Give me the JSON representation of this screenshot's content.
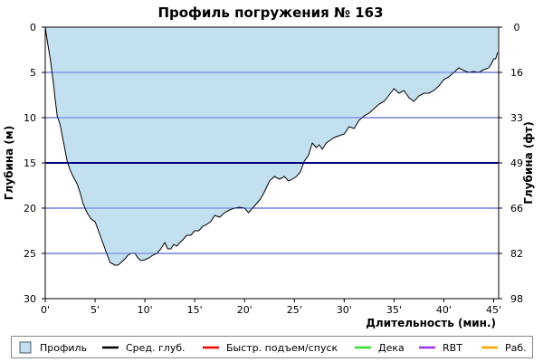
{
  "chart_data": {
    "type": "area",
    "title": "Профиль погружения № 163",
    "xlabel": "Длительность (мин.)",
    "ylabel_left": "Глубина (м)",
    "ylabel_right": "Глубина (фт)",
    "xlim": [
      0,
      45.5
    ],
    "ylim": [
      0,
      30
    ],
    "y_inverted": true,
    "x_ticks": [
      0,
      5,
      10,
      15,
      20,
      25,
      30,
      35,
      40,
      45
    ],
    "x_tick_labels": [
      "0'",
      "5'",
      "10'",
      "15'",
      "20'",
      "25'",
      "30'",
      "35'",
      "40'",
      "45'"
    ],
    "y_ticks_left": [
      0,
      5,
      10,
      15,
      20,
      25,
      30
    ],
    "y_tick_labels_left": [
      "0",
      "5",
      "10",
      "15",
      "20",
      "25",
      "30"
    ],
    "y_ticks_right_positions": [
      0,
      5,
      10,
      15,
      20,
      25,
      30
    ],
    "y_tick_labels_right": [
      "0",
      "16",
      "33",
      "49",
      "66",
      "82",
      "98"
    ],
    "grid": "horizontal",
    "average_depth": 15,
    "colors": {
      "profile_fill": "#c3e0f0",
      "profile_line": "#000000",
      "grid": "#2b3fc4",
      "avg_depth": "#000080",
      "axis": "#000000"
    },
    "series": [
      {
        "name": "Профиль",
        "x": [
          0,
          0.2,
          0.5,
          0.8,
          1.0,
          1.2,
          1.5,
          1.8,
          2.2,
          2.5,
          2.8,
          3.2,
          3.5,
          3.8,
          4.2,
          4.6,
          5.0,
          5.5,
          6.0,
          6.5,
          7.0,
          7.3,
          7.6,
          8.0,
          8.3,
          8.6,
          9.0,
          9.3,
          9.6,
          10.0,
          10.4,
          10.8,
          11.2,
          11.6,
          12.0,
          12.3,
          12.6,
          12.9,
          13.2,
          13.5,
          13.8,
          14.2,
          14.6,
          15.0,
          15.4,
          15.8,
          16.2,
          16.6,
          17.0,
          17.5,
          18.0,
          18.5,
          19.0,
          19.5,
          20.0,
          20.4,
          20.8,
          21.2,
          21.6,
          22.0,
          22.5,
          23.0,
          23.5,
          24.0,
          24.4,
          24.8,
          25.2,
          25.6,
          26.0,
          26.4,
          26.8,
          27.2,
          27.5,
          27.8,
          28.2,
          28.6,
          29.0,
          29.5,
          30.0,
          30.5,
          31.0,
          31.5,
          32.0,
          32.5,
          33.0,
          33.5,
          34.0,
          34.5,
          35.0,
          35.5,
          36.0,
          36.5,
          37.0,
          37.5,
          38.0,
          38.5,
          39.0,
          39.5,
          40.0,
          40.5,
          41.0,
          41.5,
          42.0,
          42.5,
          43.0,
          43.5,
          44.0,
          44.5,
          44.8,
          45.0,
          45.2,
          45.4
        ],
        "depth": [
          0,
          1.5,
          3.5,
          6,
          8,
          9.8,
          10.8,
          12.5,
          14.8,
          15.8,
          16.5,
          17.3,
          18.3,
          19.5,
          20.5,
          21.2,
          21.5,
          23.0,
          24.5,
          26.0,
          26.3,
          26.3,
          26.0,
          25.6,
          25.2,
          25.0,
          25.0,
          25.5,
          25.8,
          25.7,
          25.5,
          25.2,
          25.0,
          24.5,
          23.8,
          24.5,
          24.5,
          24.0,
          24.2,
          23.8,
          23.5,
          23.0,
          23.0,
          22.5,
          22.5,
          22.0,
          21.8,
          21.5,
          20.8,
          21.0,
          20.5,
          20.2,
          20.0,
          19.9,
          20.0,
          20.5,
          20.0,
          19.5,
          19.0,
          18.2,
          17.0,
          16.5,
          16.8,
          16.5,
          17.0,
          16.8,
          16.5,
          16.0,
          14.8,
          14.2,
          12.8,
          13.3,
          13.0,
          13.5,
          12.8,
          12.5,
          12.2,
          12.0,
          11.8,
          11.0,
          11.2,
          10.3,
          9.8,
          9.5,
          9.0,
          8.5,
          8.2,
          7.5,
          6.8,
          7.3,
          7.0,
          7.8,
          8.2,
          7.6,
          7.3,
          7.3,
          7.0,
          6.5,
          5.8,
          5.5,
          5.0,
          4.5,
          4.8,
          5.0,
          4.9,
          5.0,
          4.7,
          4.5,
          4.0,
          3.5,
          3.5,
          2.8
        ]
      }
    ]
  },
  "legend": [
    {
      "label": "Профиль",
      "type": "box",
      "color": "#c3e0f0"
    },
    {
      "label": "Сред. глуб.",
      "type": "line",
      "color": "#000000"
    },
    {
      "label": "Быстр. подъем/спуск",
      "type": "line",
      "color": "#ee0000"
    },
    {
      "label": "Дека",
      "type": "line",
      "color": "#33dd33"
    },
    {
      "label": "RBT",
      "type": "line",
      "color": "#9933ee"
    },
    {
      "label": "Раб.",
      "type": "line",
      "color": "#ffa500"
    }
  ]
}
